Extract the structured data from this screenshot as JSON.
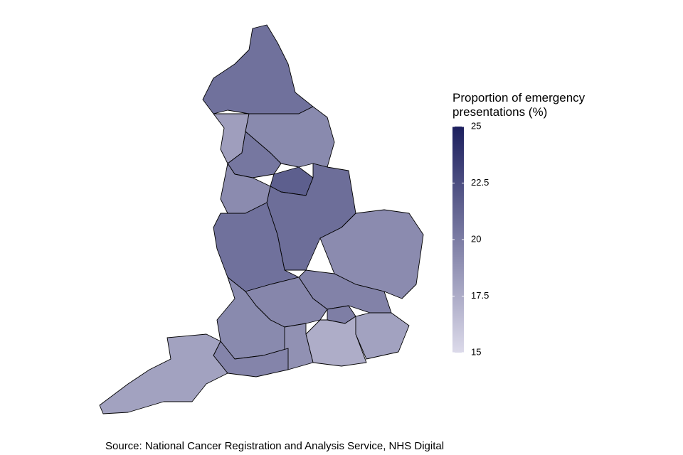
{
  "chart_data": {
    "type": "choropleth",
    "legend_title": "Proportion of emergency presentations (%)",
    "source": "Source: National Cancer Registration and Analysis Service, NHS Digital",
    "values": [
      20.6,
      18.2,
      19.3,
      20.3,
      21.6,
      20.8,
      19.2,
      20.6,
      19.2,
      19.7,
      19.5,
      19.3,
      19.9,
      17.4,
      18.0,
      18.9,
      19.6,
      18.0
    ],
    "colorbar": {
      "lim": [
        15,
        25
      ],
      "ticks": [
        15,
        17.5,
        20,
        22.5,
        25
      ],
      "low_color": "#dcdaea",
      "high_color": "#1c1f5e"
    }
  }
}
